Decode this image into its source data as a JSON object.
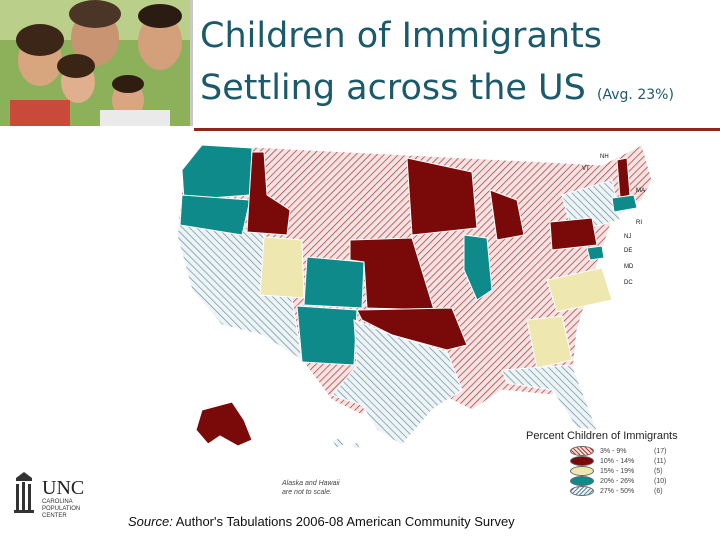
{
  "header": {
    "title_line1": "Children of Immigrants",
    "title_line2": "Settling across the US",
    "title_avg": "(Avg. 23%)"
  },
  "map": {
    "alaska_hawaii_note_line1": "Alaska and Hawaii",
    "alaska_hawaii_note_line2": "are not to scale.",
    "state_labels": [
      "NH",
      "VT",
      "MA",
      "RI",
      "NJ",
      "DE",
      "MD",
      "DC"
    ]
  },
  "legend": {
    "title": "Percent Children of Immigrants",
    "items": [
      {
        "range": "3% - 9%",
        "count": "(17)",
        "color": "#c0392b",
        "pattern": "hatch-red"
      },
      {
        "range": "10% - 14%",
        "count": "(11)",
        "color": "#7a0a0a",
        "pattern": "solid"
      },
      {
        "range": "15% - 19%",
        "count": "(5)",
        "color": "#efe7b0",
        "pattern": "solid"
      },
      {
        "range": "20% - 26%",
        "count": "(10)",
        "color": "#0e8a8a",
        "pattern": "solid"
      },
      {
        "range": "27% - 50%",
        "count": "(6)",
        "color": "#5a8aa0",
        "pattern": "hatch-blue"
      }
    ]
  },
  "logo": {
    "unc": "UNC",
    "line1": "CAROLINA",
    "line2": "POPULATION",
    "line3": "CENTER"
  },
  "footer": {
    "source_label": "Source:",
    "source_text": " Author's Tabulations 2006-08 American Community Survey"
  }
}
